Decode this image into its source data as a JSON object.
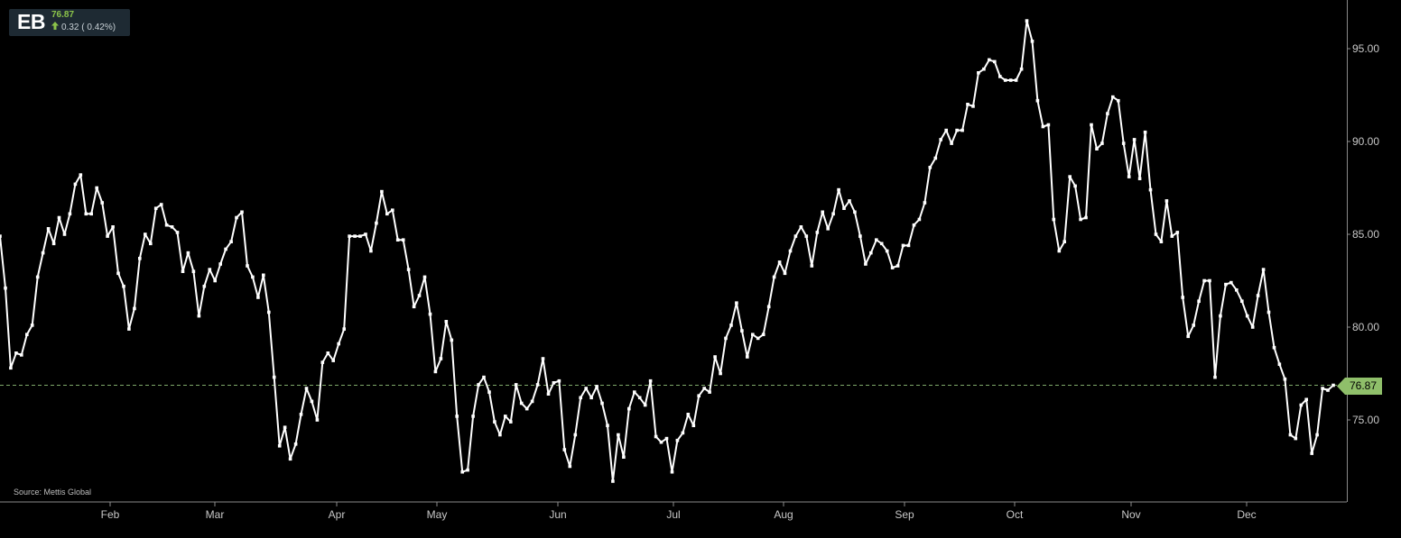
{
  "badge": {
    "ticker": "EB",
    "price": "76.87",
    "change": "0.32 ( 0.42%)",
    "change_direction": "up",
    "arrow_icon": "arrow-up-icon"
  },
  "source": "Source: Mettis Global",
  "colors": {
    "background": "#000000",
    "line": "#ffffff",
    "up": "#8bc34a",
    "last_price_line": "#7ea86a"
  },
  "chart_data": {
    "type": "line",
    "title": "",
    "xlabel": "",
    "ylabel": "",
    "x_ticks": [
      "Feb",
      "Mar",
      "Apr",
      "May",
      "Jun",
      "Jul",
      "Aug",
      "Sep",
      "Oct",
      "Nov",
      "Dec"
    ],
    "y_ticks": [
      "75.00",
      "80.00",
      "85.00",
      "90.00",
      "95.00"
    ],
    "ylim": [
      70.5,
      97.5
    ],
    "grid": false,
    "last_value": 76.87,
    "last_value_label": "76.87",
    "series": [
      {
        "values": [
          84.9,
          82.1,
          77.8,
          78.6,
          78.5,
          79.6,
          80.1,
          82.7,
          84.0,
          85.3,
          84.5,
          85.9,
          85.0,
          86.1,
          87.7,
          88.2,
          86.1,
          86.1,
          87.5,
          86.7,
          84.9,
          85.4,
          82.9,
          82.2,
          79.9,
          81.0,
          83.7,
          85.0,
          84.5,
          86.4,
          86.6,
          85.5,
          85.4,
          85.1,
          83.0,
          84.0,
          83.0,
          80.6,
          82.2,
          83.1,
          82.5,
          83.4,
          84.2,
          84.6,
          85.9,
          86.2,
          83.3,
          82.7,
          81.6,
          82.8,
          80.8,
          77.3,
          73.6,
          74.6,
          72.9,
          73.7,
          75.3,
          76.7,
          76.0,
          75.0,
          78.1,
          78.6,
          78.2,
          79.1,
          79.9,
          84.9,
          84.9,
          84.9,
          85.0,
          84.1,
          85.6,
          87.3,
          86.1,
          86.3,
          84.7,
          84.7,
          83.1,
          81.1,
          81.7,
          82.7,
          80.7,
          77.6,
          78.3,
          80.3,
          79.3,
          75.2,
          72.2,
          72.3,
          75.2,
          76.9,
          77.3,
          76.5,
          74.9,
          74.2,
          75.2,
          74.9,
          76.9,
          75.9,
          75.6,
          76.0,
          76.9,
          78.3,
          76.4,
          77.0,
          77.1,
          73.4,
          72.5,
          74.2,
          76.2,
          76.7,
          76.2,
          76.8,
          75.9,
          74.7,
          71.7,
          74.2,
          73.0,
          75.6,
          76.5,
          76.2,
          75.8,
          77.1,
          74.1,
          73.8,
          74.0,
          72.2,
          73.9,
          74.3,
          75.3,
          74.7,
          76.3,
          76.7,
          76.5,
          78.4,
          77.5,
          79.4,
          80.1,
          81.3,
          79.8,
          78.4,
          79.6,
          79.4,
          79.6,
          81.1,
          82.7,
          83.5,
          82.9,
          84.1,
          84.9,
          85.4,
          84.9,
          83.3,
          85.1,
          86.2,
          85.3,
          86.1,
          87.4,
          86.4,
          86.8,
          86.2,
          84.9,
          83.4,
          84.0,
          84.7,
          84.5,
          84.1,
          83.2,
          83.3,
          84.4,
          84.4,
          85.5,
          85.8,
          86.7,
          88.6,
          89.1,
          90.1,
          90.6,
          89.9,
          90.6,
          90.6,
          92.0,
          91.9,
          93.7,
          93.9,
          94.4,
          94.3,
          93.5,
          93.3,
          93.3,
          93.3,
          93.9,
          96.5,
          95.4,
          92.2,
          90.8,
          90.9,
          85.8,
          84.1,
          84.6,
          88.1,
          87.6,
          85.8,
          85.9,
          90.9,
          89.6,
          89.9,
          91.5,
          92.4,
          92.2,
          89.9,
          88.1,
          90.1,
          88.0,
          90.5,
          87.4,
          85.0,
          84.6,
          86.8,
          84.9,
          85.1,
          81.6,
          79.5,
          80.1,
          81.4,
          82.5,
          82.5,
          77.3,
          80.6,
          82.3,
          82.4,
          82.0,
          81.4,
          80.6,
          80.0,
          81.7,
          83.1,
          80.8,
          78.9,
          78.0,
          77.2,
          74.2,
          74.0,
          75.8,
          76.1,
          73.2,
          74.2,
          76.7,
          76.6,
          76.87
        ]
      }
    ]
  }
}
